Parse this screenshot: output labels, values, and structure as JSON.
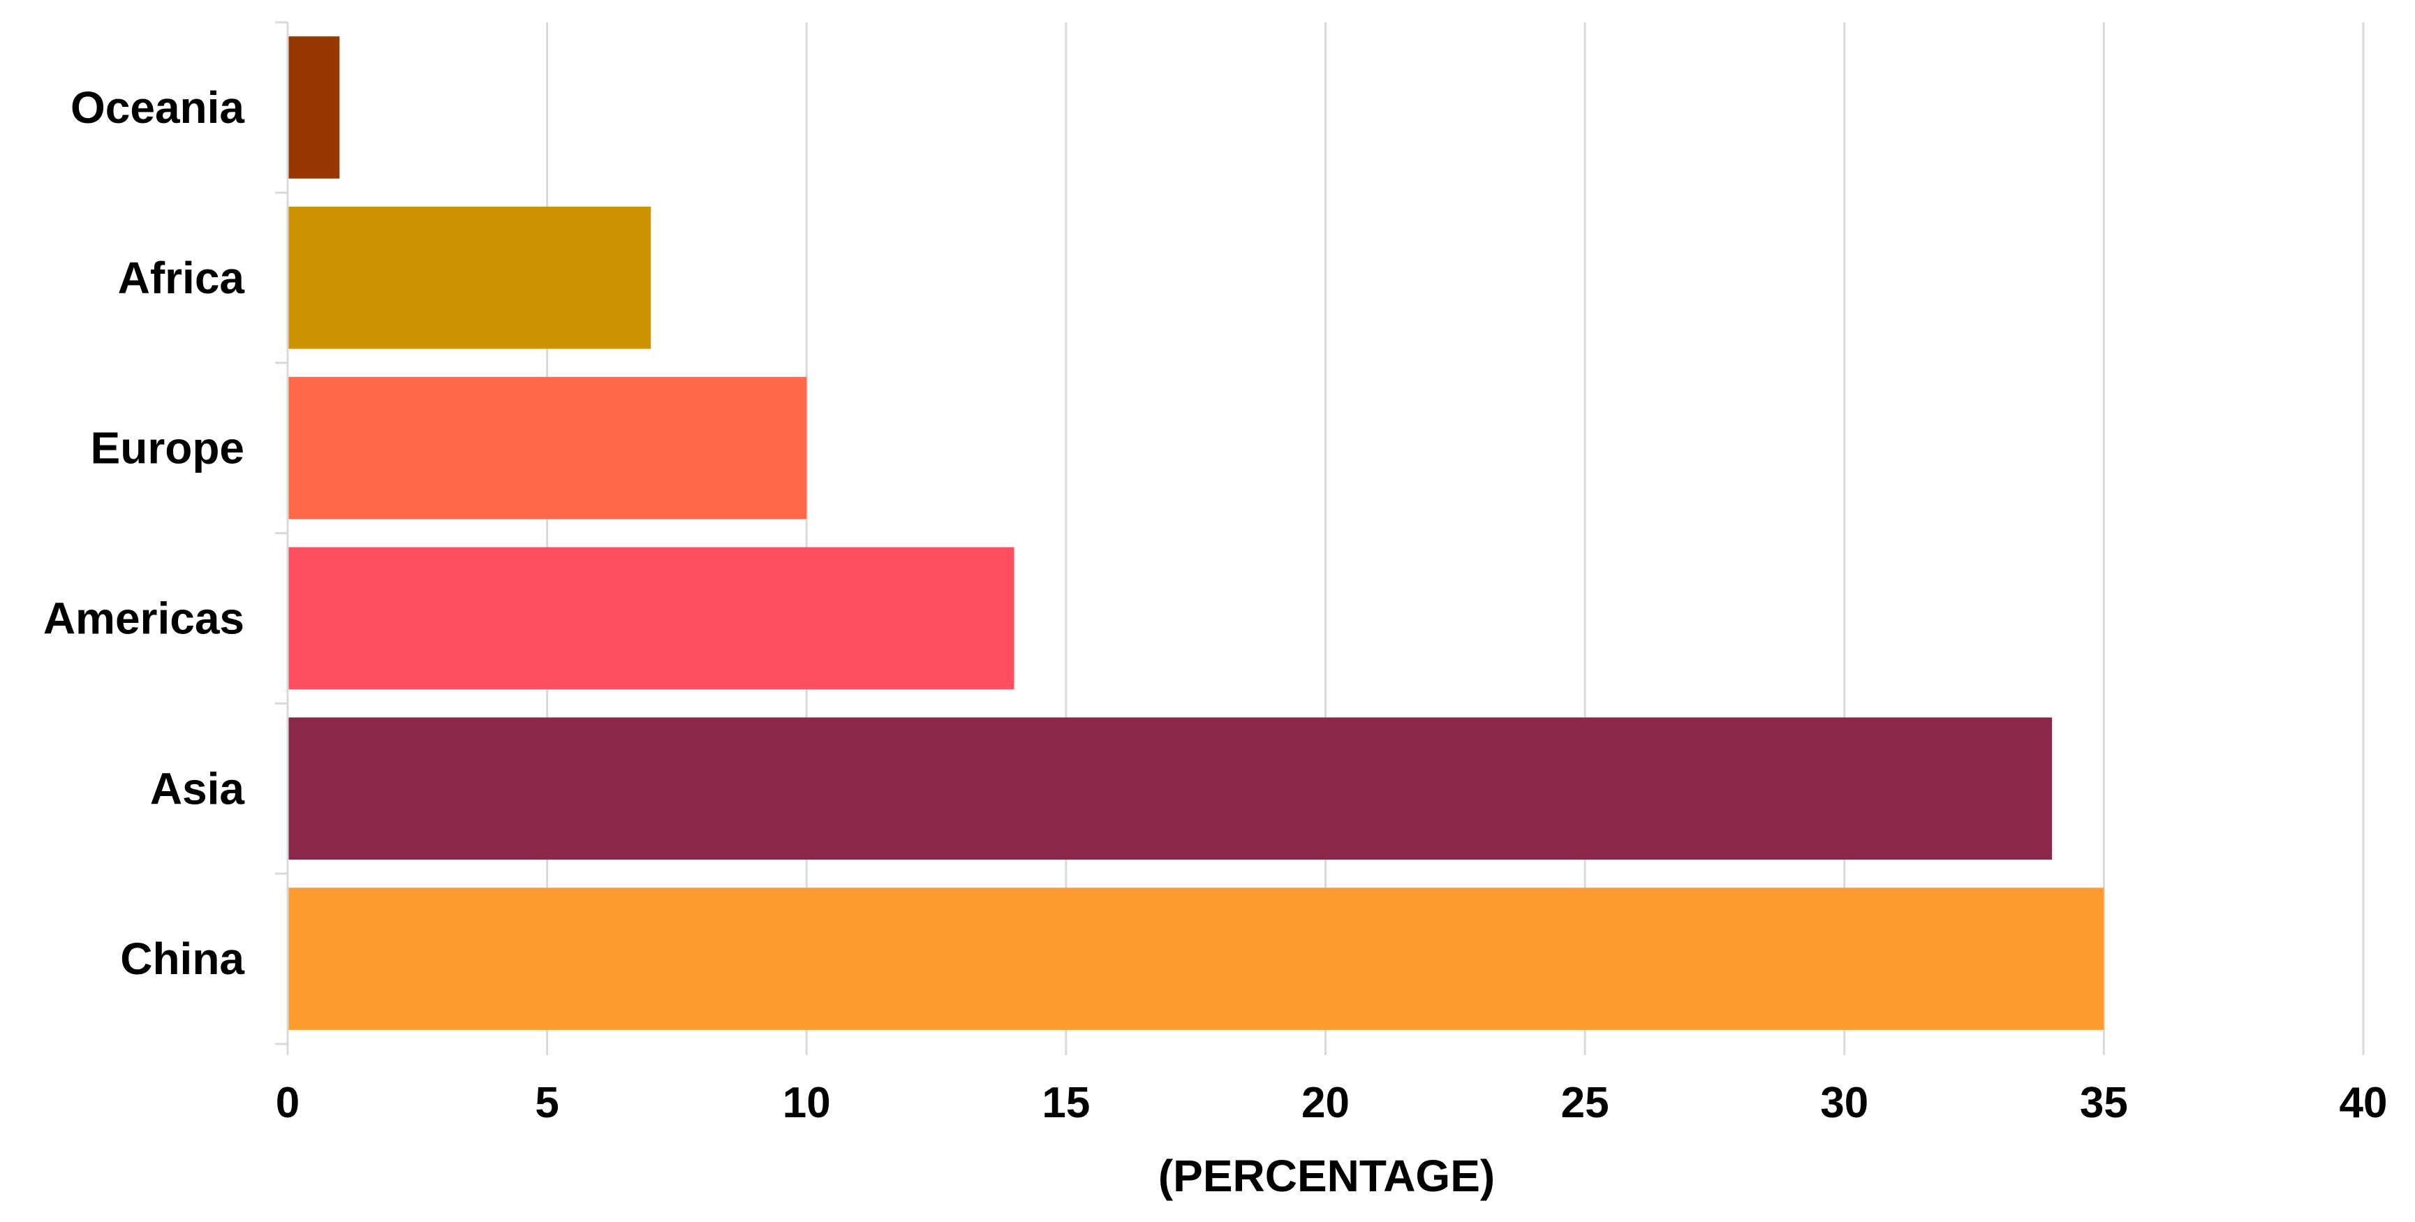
{
  "chart_data": {
    "type": "bar",
    "orientation": "horizontal",
    "categories": [
      "China",
      "Asia",
      "Americas",
      "Europe",
      "Africa",
      "Oceania"
    ],
    "values": [
      35,
      34,
      14,
      10,
      7,
      1
    ],
    "colors": [
      "#FF9A2E",
      "#8B284A",
      "#FF5062",
      "#FF694A",
      "#CF9200",
      "#973800"
    ],
    "xlabel": "(PERCENTAGE)",
    "ylabel": "",
    "title": "",
    "xlim": [
      0,
      40
    ],
    "xticks": [
      0,
      5,
      10,
      15,
      20,
      25,
      30,
      35,
      40
    ],
    "grid": "vertical",
    "legend": "none"
  }
}
